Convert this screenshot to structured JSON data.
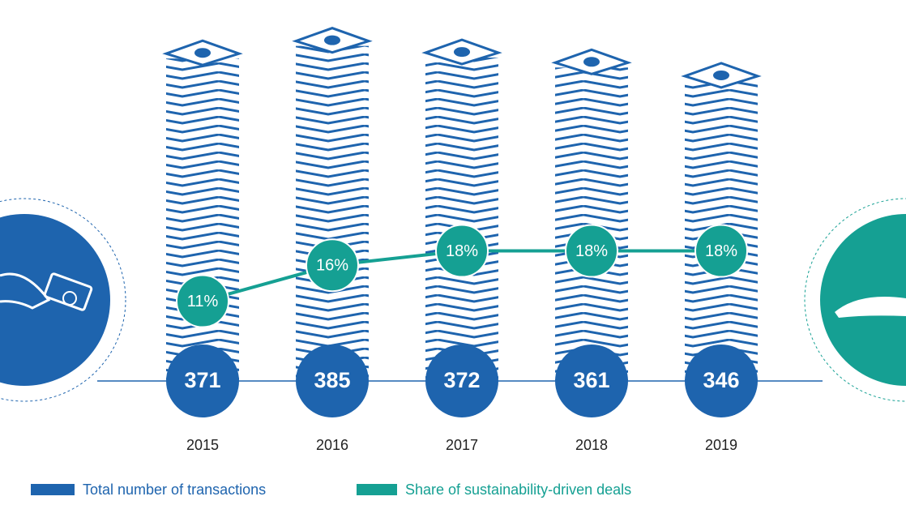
{
  "chart_data": {
    "type": "bar-line",
    "categories": [
      "2015",
      "2016",
      "2017",
      "2018",
      "2019"
    ],
    "series": [
      {
        "name": "Total number of transactions",
        "color": "#1e64ae",
        "values": [
          371,
          385,
          372,
          361,
          346
        ]
      },
      {
        "name": "Share of sustainability-driven deals",
        "color": "#15a093",
        "values": [
          11,
          16,
          18,
          18,
          18
        ],
        "value_labels": [
          "11%",
          "16%",
          "18%",
          "18%",
          "18%"
        ]
      }
    ]
  }
}
